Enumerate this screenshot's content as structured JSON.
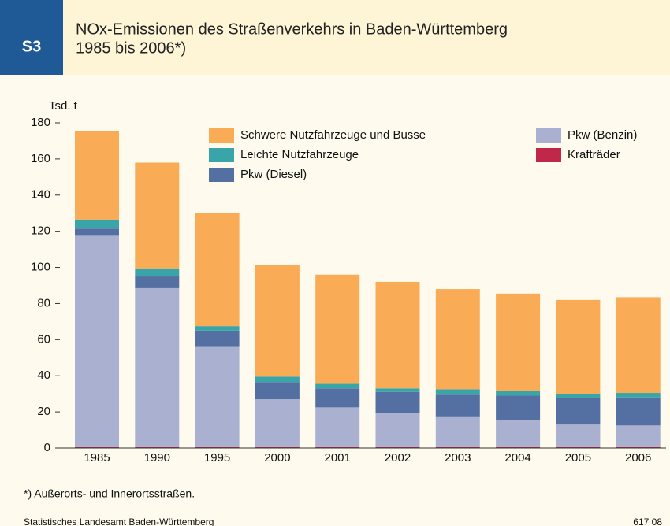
{
  "chart_data": {
    "type": "stacked_bar",
    "badge": "S3",
    "title": "NOx-Emissionen des Straßenverkehrs in Baden-Württemberg",
    "subtitle": "1985 bis 2006*)",
    "y_axis_label": "Tsd. t",
    "footnote": "*) Außerorts- und Innerortsstraßen.",
    "source": "Statistisches Landesamt Baden-Württemberg",
    "code": "617 08",
    "categories": [
      "1985",
      "1990",
      "1995",
      "2000",
      "2001",
      "2002",
      "2003",
      "2004",
      "2005",
      "2006"
    ],
    "series": [
      {
        "name": "Krafträder",
        "color": "#c0284a",
        "values": [
          0.5,
          0.5,
          0.5,
          0.5,
          0.5,
          0.5,
          0.5,
          0.5,
          0.5,
          0.5
        ]
      },
      {
        "name": "Pkw (Benzin)",
        "color": "#aab0cf",
        "values": [
          117,
          88,
          55.5,
          26.5,
          22,
          19,
          17,
          15,
          12.5,
          12
        ]
      },
      {
        "name": "Pkw (Diesel)",
        "color": "#5470a3",
        "values": [
          4,
          6.5,
          9,
          9.5,
          10.5,
          11.5,
          12,
          13.5,
          14.5,
          15.5
        ]
      },
      {
        "name": "Leichte Nutzfahrzeuge",
        "color": "#3aa5a8",
        "values": [
          5,
          4.5,
          2.5,
          3,
          2.5,
          2,
          3,
          2.5,
          2.5,
          2.5
        ]
      },
      {
        "name": "Schwere Nutzfahrzeuge und Busse",
        "color": "#f9ab56",
        "values": [
          49,
          58.5,
          62.5,
          62,
          60.5,
          59,
          55.5,
          54,
          52,
          53
        ]
      }
    ],
    "ylim": [
      0,
      180
    ],
    "yticks": [
      0,
      20,
      40,
      60,
      80,
      100,
      120,
      140,
      160,
      180
    ],
    "grid": false
  }
}
